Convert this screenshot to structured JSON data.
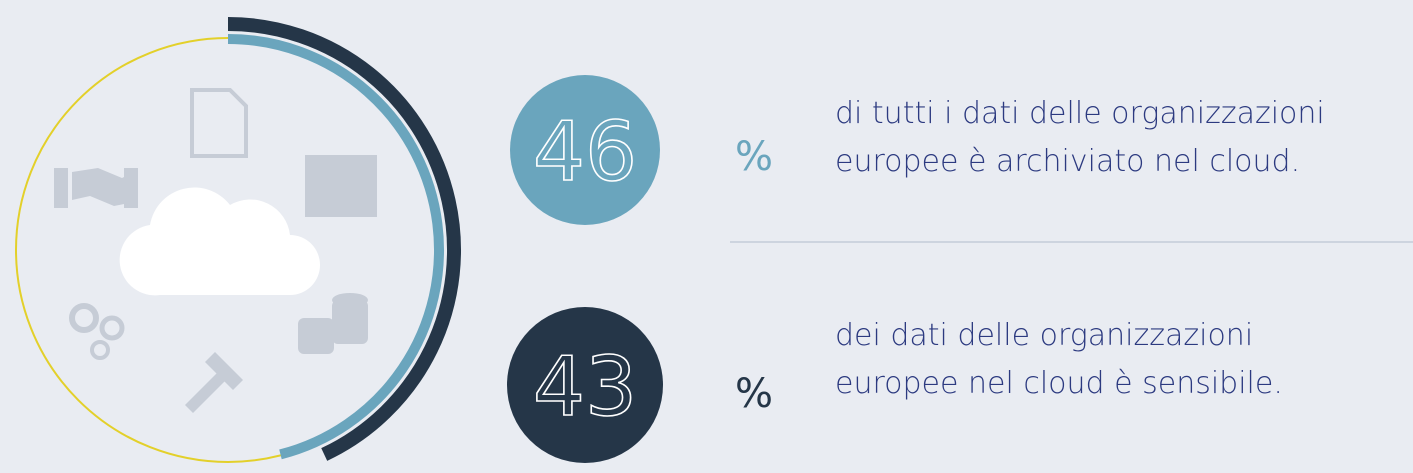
{
  "stats": [
    {
      "value": 46,
      "unit": "%",
      "lines": [
        "di tutti i dati delle organizzazioni",
        "europee è archiviato nel cloud."
      ],
      "color": "#6aa5bd"
    },
    {
      "value": 43,
      "unit": "%",
      "lines": [
        "dei dati delle organizzazioni",
        "europee nel cloud è sensibile."
      ],
      "color": "#253648"
    }
  ]
}
